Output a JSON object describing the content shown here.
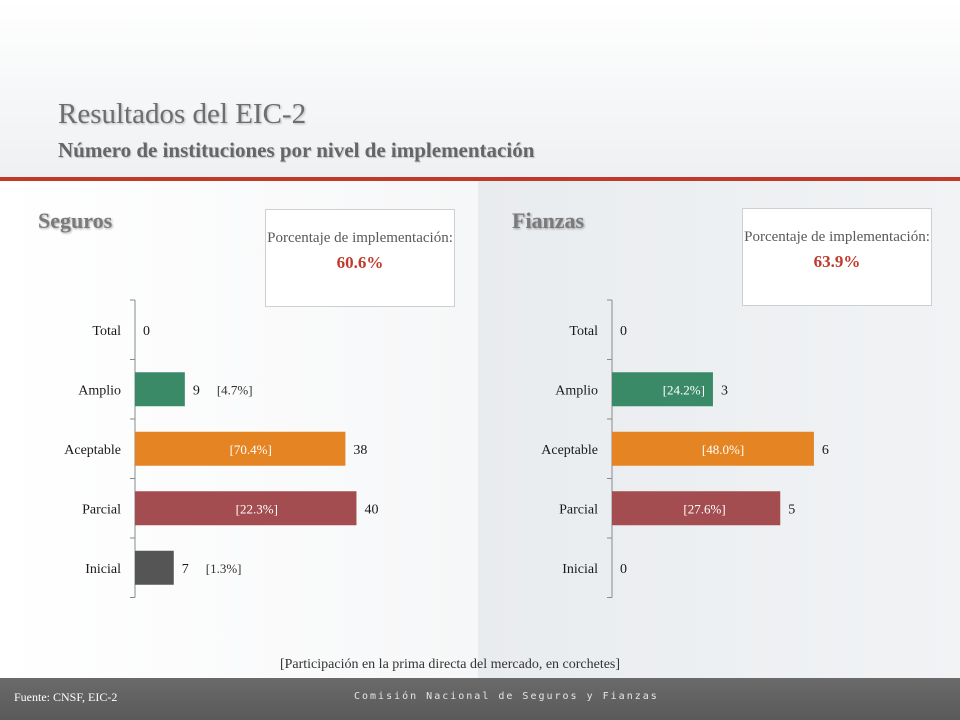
{
  "header": {
    "title": "Resultados del EIC-2",
    "subtitle": "Número de instituciones por nivel de implementación"
  },
  "colors": {
    "accent_red": "#c0392b",
    "amplio": "#3a8a68",
    "aceptable": "#e58422",
    "parcial": "#a34d50",
    "inicial": "#555555"
  },
  "panels": [
    {
      "section": "Seguros",
      "pct_label": "Porcentaje de implementación:",
      "pct_value": "60.6%"
    },
    {
      "section": "Fianzas",
      "pct_label": "Porcentaje de implementación:",
      "pct_value": "63.9%"
    }
  ],
  "chart_data": [
    {
      "type": "bar",
      "orientation": "horizontal",
      "title": "Seguros",
      "categories": [
        "Total",
        "Amplio",
        "Aceptable",
        "Parcial",
        "Inicial"
      ],
      "values": [
        0,
        9,
        38,
        40,
        7
      ],
      "market_share": [
        "",
        "[4.7%]",
        "[70.4%]",
        "[22.3%]",
        "[1.3%]"
      ],
      "share_inside_bar": [
        false,
        false,
        true,
        true,
        false
      ],
      "xlim": [
        0,
        41
      ],
      "grid": false,
      "legend": "none"
    },
    {
      "type": "bar",
      "orientation": "horizontal",
      "title": "Fianzas",
      "categories": [
        "Total",
        "Amplio",
        "Aceptable",
        "Parcial",
        "Inicial"
      ],
      "values": [
        0,
        3,
        6,
        5,
        0
      ],
      "market_share": [
        "",
        "[24.2%]",
        "[48.0%]",
        "[27.6%]",
        ""
      ],
      "share_inside_bar": [
        false,
        true,
        true,
        true,
        false
      ],
      "xlim": [
        0,
        6.3
      ],
      "grid": false,
      "legend": "none"
    }
  ],
  "note": "[Participación en la prima directa del mercado, en corchetes]",
  "footer": {
    "source": "Fuente: CNSF, EIC-2",
    "brand": "Comisión Nacional de Seguros y Fianzas"
  }
}
